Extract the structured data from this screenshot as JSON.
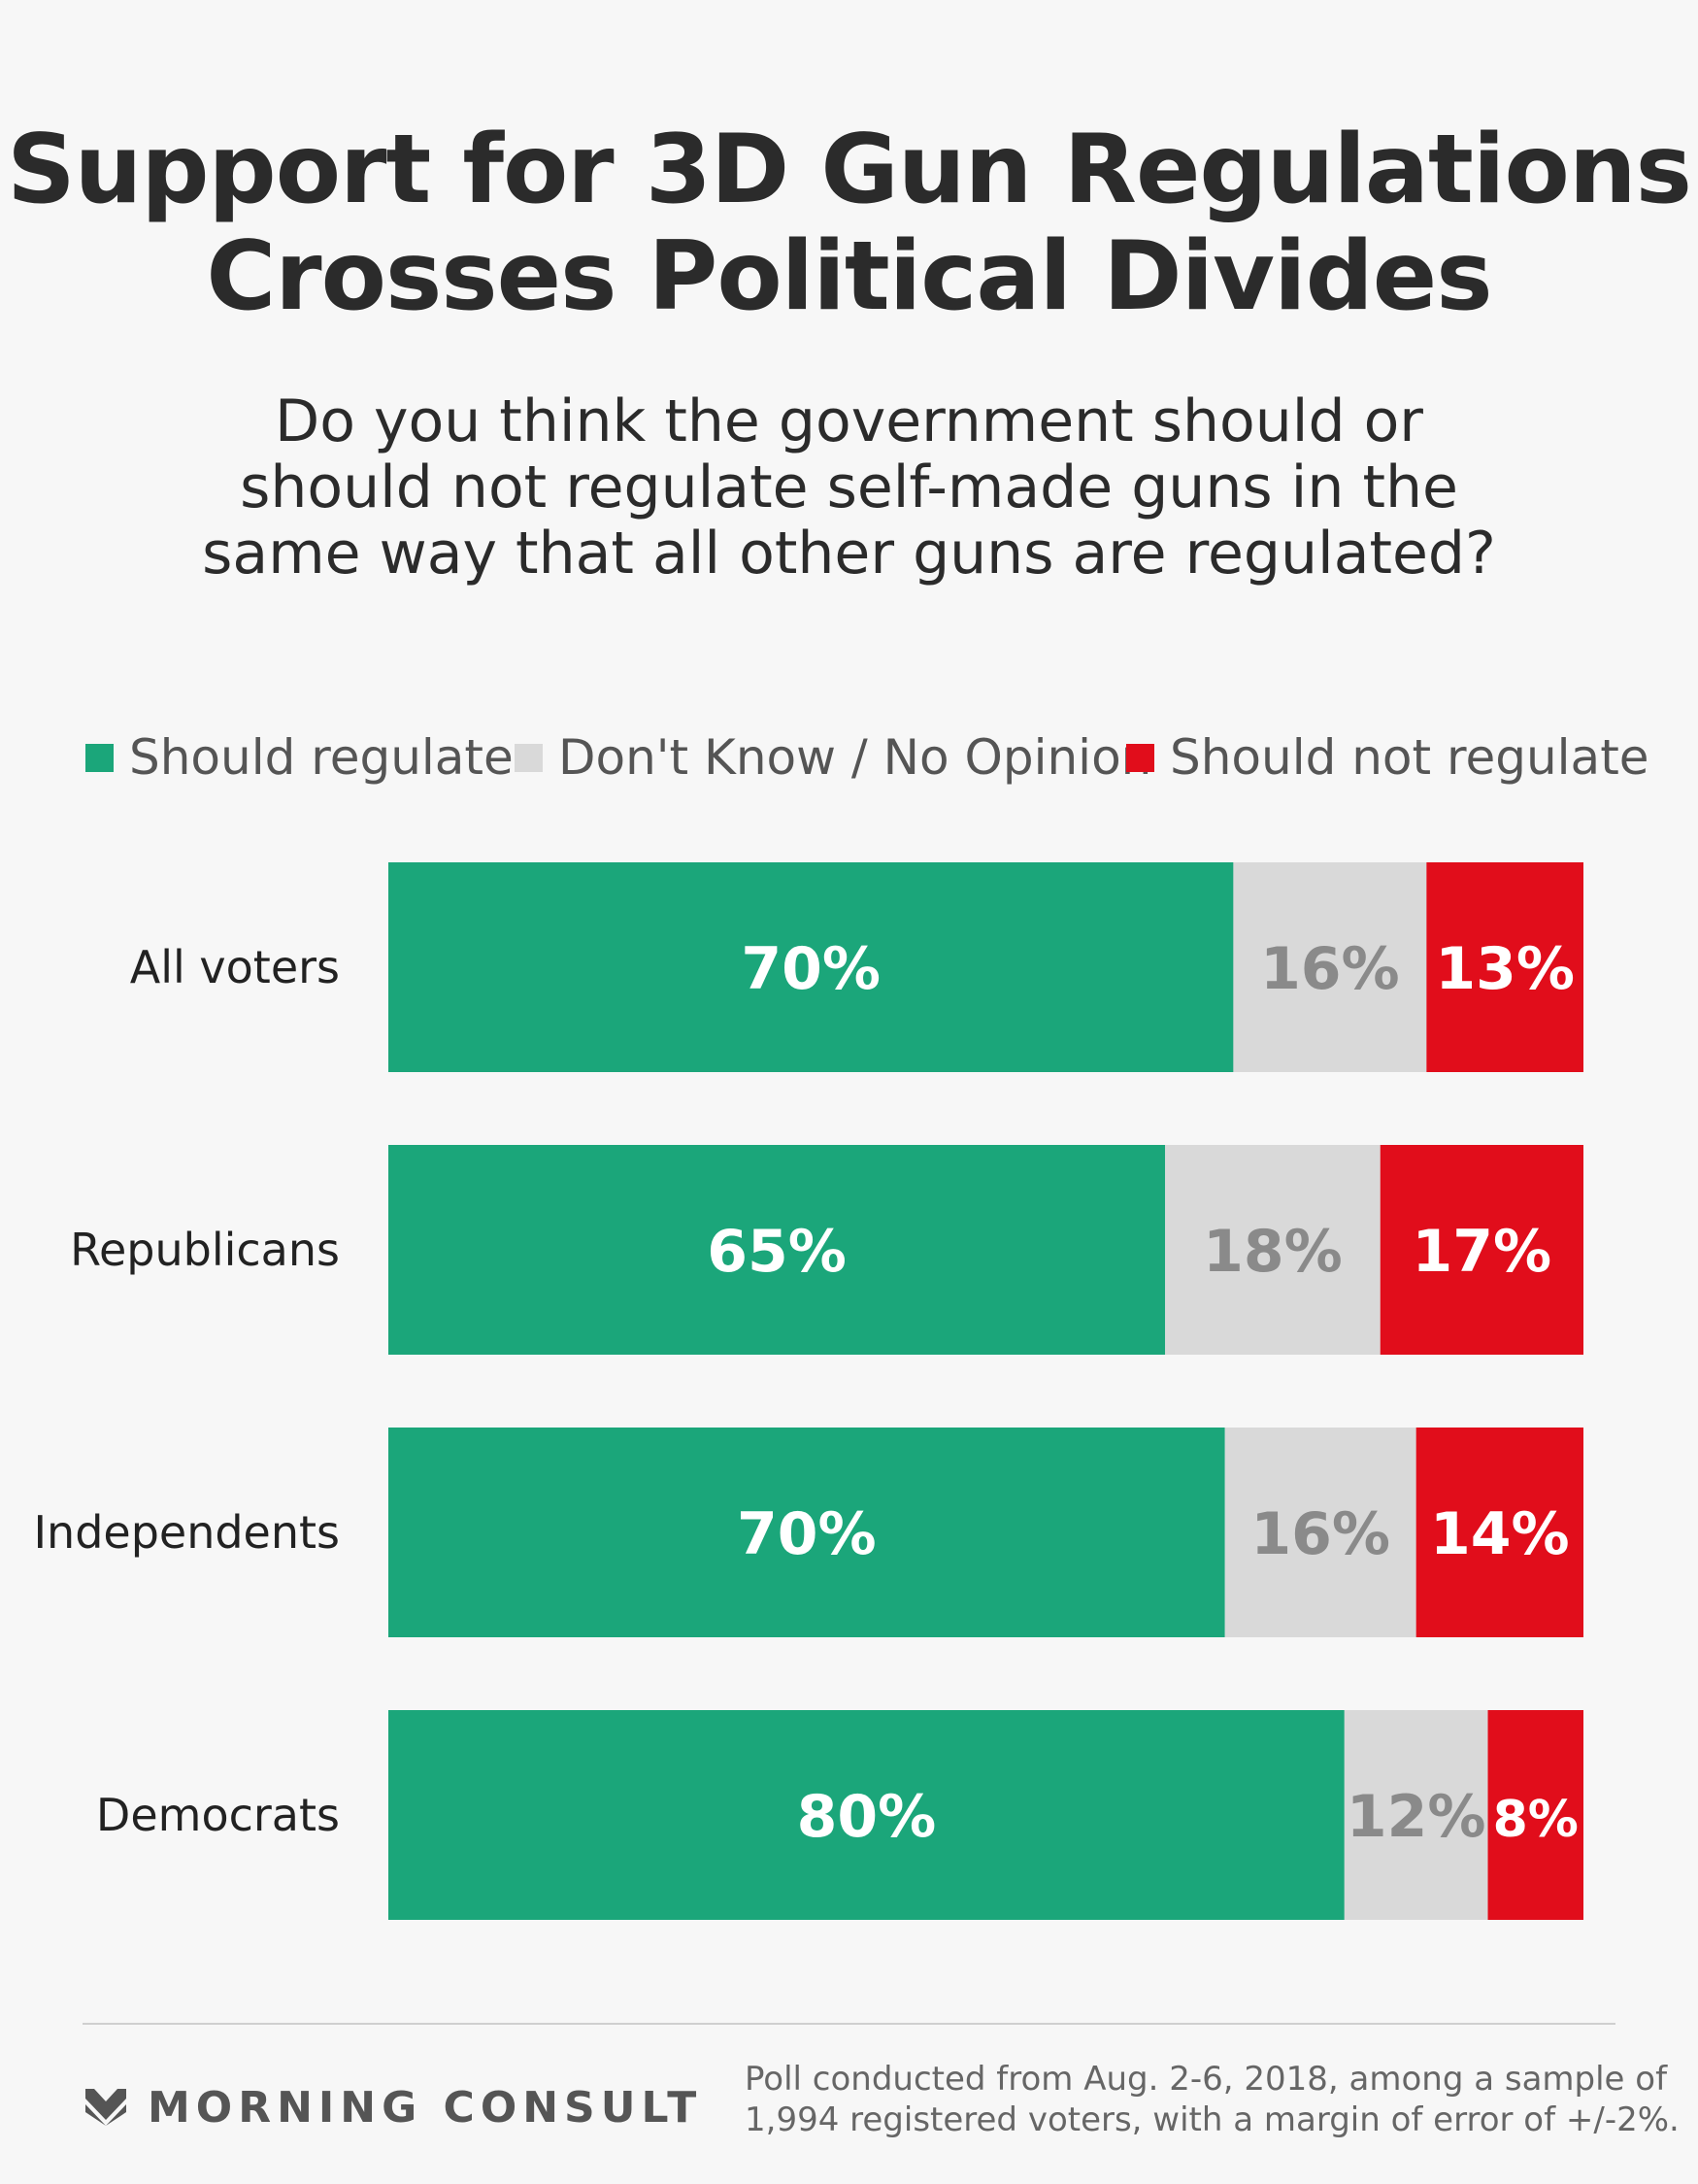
{
  "title": {
    "line1": "Support for 3D Gun Regulations",
    "line2": "Crosses Political Divides"
  },
  "subtitle": {
    "line1": "Do you think the government should or",
    "line2": "should not regulate self-made guns in the",
    "line3": "same way that all other guns are regulated?"
  },
  "legend": [
    {
      "label": "Should regulate",
      "color": "#1ba67a"
    },
    {
      "label": "Don't Know / No Opinion",
      "color": "#d9d9d9"
    },
    {
      "label": "Should not regulate",
      "color": "#e10d1b"
    }
  ],
  "chart_data": {
    "type": "bar",
    "orientation": "horizontal",
    "stacked": true,
    "categories": [
      "All voters",
      "Republicans",
      "Independents",
      "Democrats"
    ],
    "series": [
      {
        "name": "Should regulate",
        "color": "#1ba67a",
        "text_color": "#ffffff",
        "values": [
          70,
          65,
          70,
          80
        ],
        "labels": [
          "70%",
          "65%",
          "70%",
          "80%"
        ]
      },
      {
        "name": "Don't Know / No Opinion",
        "color": "#d9d9d9",
        "text_color": "#8a8a8a",
        "values": [
          16,
          18,
          16,
          12
        ],
        "labels": [
          "16%",
          "18%",
          "16%",
          "12%"
        ]
      },
      {
        "name": "Should not regulate",
        "color": "#e10d1b",
        "text_color": "#ffffff",
        "values": [
          13,
          17,
          14,
          8
        ],
        "labels": [
          "13%",
          "17%",
          "14%",
          "8%"
        ]
      }
    ],
    "xlim": [
      0,
      100
    ],
    "unit": "%"
  },
  "footer": {
    "brand": "MORNING CONSULT",
    "note_line1": "Poll conducted from Aug. 2-6, 2018, among a sample of",
    "note_line2": "1,994 registered voters, with a margin of error of +/-2%."
  }
}
